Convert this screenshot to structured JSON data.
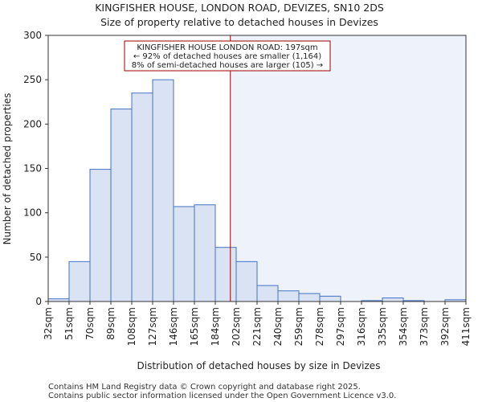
{
  "chart_data": {
    "type": "bar",
    "title": "KINGFISHER HOUSE, LONDON ROAD, DEVIZES, SN10 2DS",
    "subtitle": "Size of property relative to detached houses in Devizes",
    "xlabel": "Distribution of detached houses by size in Devizes",
    "ylabel": "Number of detached properties",
    "ylim": [
      0,
      300
    ],
    "yticks": [
      0,
      50,
      100,
      150,
      200,
      250,
      300
    ],
    "bin_edges": [
      32,
      51,
      70,
      89,
      108,
      127,
      146,
      165,
      184,
      202,
      221,
      240,
      259,
      278,
      297,
      316,
      335,
      354,
      373,
      392,
      411
    ],
    "xtick_labels": [
      "32sqm",
      "51sqm",
      "70sqm",
      "89sqm",
      "108sqm",
      "127sqm",
      "146sqm",
      "165sqm",
      "184sqm",
      "202sqm",
      "221sqm",
      "240sqm",
      "259sqm",
      "278sqm",
      "297sqm",
      "316sqm",
      "335sqm",
      "354sqm",
      "373sqm",
      "392sqm",
      "411sqm"
    ],
    "values": [
      3,
      45,
      149,
      217,
      235,
      250,
      107,
      109,
      61,
      45,
      18,
      12,
      9,
      6,
      0,
      1,
      4,
      1,
      0,
      2
    ],
    "marker_value": 197,
    "grid": false,
    "colors": {
      "bar_fill": "#dae3f3",
      "bar_edge": "#4472c4",
      "marker": "#990000",
      "highlight_region": "#eef2fb",
      "annotation_border": "#990000"
    },
    "annotation": {
      "line1": "KINGFISHER HOUSE LONDON ROAD: 197sqm",
      "line2": "← 92% of detached houses are smaller (1,164)",
      "line3": "8% of semi-detached houses are larger (105) →"
    }
  },
  "footer": {
    "line1": "Contains HM Land Registry data © Crown copyright and database right 2025.",
    "line2": "Contains public sector information licensed under the Open Government Licence v3.0."
  }
}
